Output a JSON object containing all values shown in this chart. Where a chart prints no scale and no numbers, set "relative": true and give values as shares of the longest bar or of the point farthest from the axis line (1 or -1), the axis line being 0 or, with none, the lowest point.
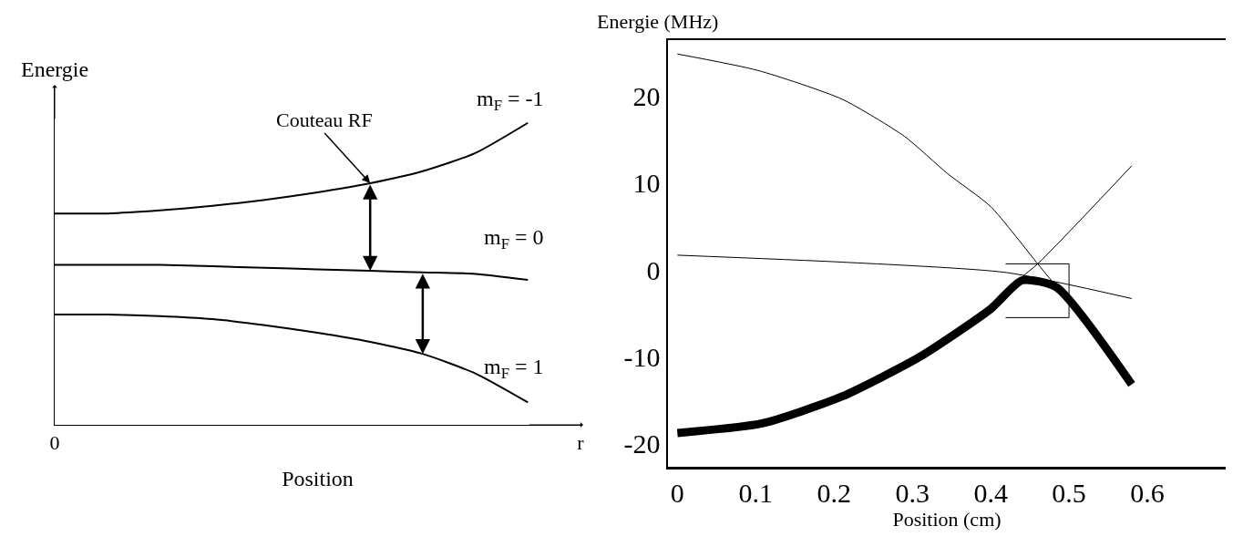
{
  "chart_data": [
    {
      "type": "line",
      "relative": true,
      "xlabel": "Position",
      "ylabel": "Energie",
      "categories": [
        "0",
        null,
        null,
        null,
        null,
        null,
        null,
        null,
        null,
        null,
        "r"
      ],
      "series": [
        {
          "name": "m$_{F}$ = -1",
          "color": "#000000",
          "values": [
            0.7,
            0.7,
            0.71,
            0.725,
            0.745,
            0.77,
            0.8,
            0.84,
            0.9,
            1.0,
            null
          ]
        },
        {
          "name": "m$_{F}$ = 0",
          "color": "#000000",
          "values": [
            0.53,
            0.53,
            0.53,
            0.525,
            0.52,
            0.515,
            0.51,
            0.505,
            0.5,
            0.48,
            null
          ]
        },
        {
          "name": "m$_{F}$ = 1",
          "color": "#000000",
          "values": [
            0.365,
            0.365,
            0.36,
            0.35,
            0.33,
            0.305,
            0.275,
            0.235,
            0.17,
            0.074,
            null
          ]
        }
      ],
      "annotations": [
        "Couteau RF"
      ]
    },
    {
      "type": "line",
      "xlabel": "Position (cm)",
      "ylabel": "Energie (MHz)",
      "xlim": [
        -0.012,
        0.7
      ],
      "xticks": [
        0,
        0.1,
        0.2,
        0.3,
        0.4,
        0.5,
        0.6
      ],
      "ylim": [
        -22.7,
        26.5
      ],
      "yticks": [
        -20,
        -10,
        0,
        10,
        20
      ],
      "series": [
        {
          "color": "#000000",
          "x": [
            0,
            0.103,
            0.21,
            0.29,
            0.345,
            0.4,
            0.46,
            0.48
          ],
          "values": [
            24.9,
            23,
            19.7,
            15.4,
            11.1,
            7.3,
            0.7,
            -1.5
          ]
        },
        {
          "color": "#000000",
          "x": [
            0.43,
            0.46,
            0.58
          ],
          "values": [
            -1.5,
            0.7,
            12
          ]
        },
        {
          "color": "#000000",
          "x": [
            0,
            0.21,
            0.42,
            0.58
          ],
          "values": [
            1.7,
            0.9,
            -0.3,
            -3.3
          ]
        },
        {
          "color": "#000000",
          "x": [
            0,
            0.108,
            0.21,
            0.31,
            0.4,
            0.44,
            0.484,
            0.58
          ],
          "values": [
            -18.8,
            -17.7,
            -14.6,
            -10,
            -4.5,
            -1.2,
            -2.0,
            -13.2
          ]
        },
        {
          "color": "#000000",
          "x": [
            0.419,
            0.5,
            0.5,
            0.419
          ],
          "values": [
            0.7,
            0.7,
            -5.5,
            -5.5
          ]
        }
      ]
    }
  ]
}
